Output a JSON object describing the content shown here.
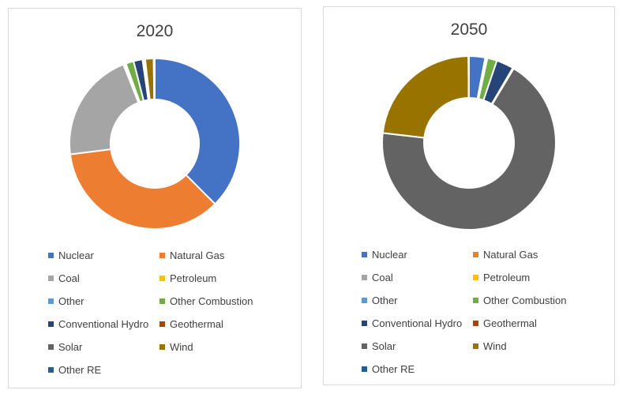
{
  "chart_data": [
    {
      "type": "pie",
      "variant": "donut",
      "title": "2020",
      "categories": [
        "Nuclear",
        "Natural Gas",
        "Coal",
        "Petroleum",
        "Other",
        "Other Combustion",
        "Conventional Hydro",
        "Geothermal",
        "Solar",
        "Wind",
        "Other RE"
      ],
      "values": [
        37.5,
        35.5,
        21.0,
        0.2,
        0.3,
        1.5,
        1.7,
        0.3,
        0.2,
        1.6,
        0.2
      ],
      "colors": [
        "#4472C4",
        "#ED7D31",
        "#A5A5A5",
        "#FFC000",
        "#5B9BD5",
        "#70AD47",
        "#264478",
        "#9E480E",
        "#636363",
        "#997300",
        "#255E91"
      ],
      "legend": "bottom"
    },
    {
      "type": "pie",
      "variant": "donut",
      "title": "2050",
      "categories": [
        "Nuclear",
        "Natural Gas",
        "Coal",
        "Petroleum",
        "Other",
        "Other Combustion",
        "Conventional Hydro",
        "Geothermal",
        "Solar",
        "Wind",
        "Other RE"
      ],
      "values": [
        3.0,
        0.1,
        0.1,
        0.1,
        0.1,
        1.8,
        3.2,
        0.2,
        68.0,
        23.0,
        0.1
      ],
      "colors": [
        "#4472C4",
        "#ED7D31",
        "#A5A5A5",
        "#FFC000",
        "#5B9BD5",
        "#70AD47",
        "#264478",
        "#9E480E",
        "#636363",
        "#997300",
        "#255E91"
      ],
      "legend": "bottom"
    }
  ]
}
